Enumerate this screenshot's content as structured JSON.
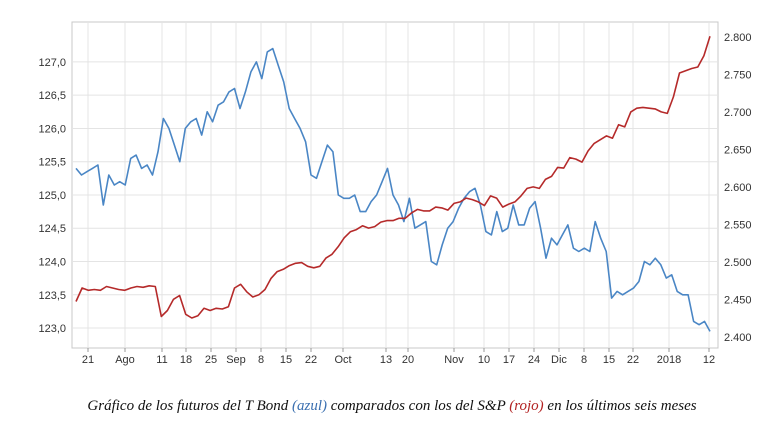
{
  "chart_data": {
    "type": "line",
    "grid": true,
    "legend": "none",
    "x_ticks": [
      "21",
      "Ago",
      "11",
      "18",
      "25",
      "Sep",
      "8",
      "15",
      "22",
      "Oct",
      "13",
      "20",
      "Nov",
      "10",
      "17",
      "24",
      "Dic",
      "8",
      "15",
      "22",
      "2018",
      "12"
    ],
    "y_left": {
      "ticks": [
        "123,0",
        "123,5",
        "124,0",
        "124,5",
        "125,0",
        "125,5",
        "126,0",
        "126,5",
        "127,0"
      ],
      "ylim": [
        122.7,
        127.6
      ]
    },
    "y_right": {
      "ticks": [
        "2.400",
        "2.450",
        "2.500",
        "2.550",
        "2.600",
        "2.650",
        "2.700",
        "2.750",
        "2.800"
      ],
      "ylim": [
        2.385,
        2.82
      ]
    },
    "series": [
      {
        "name": "T Bond",
        "axis": "left",
        "color": "#4a86c5",
        "values": [
          125.4,
          125.3,
          125.35,
          125.4,
          125.45,
          124.85,
          125.3,
          125.15,
          125.2,
          125.15,
          125.55,
          125.6,
          125.4,
          125.45,
          125.3,
          125.65,
          126.15,
          126.0,
          125.75,
          125.5,
          126.0,
          126.1,
          126.15,
          125.9,
          126.25,
          126.1,
          126.35,
          126.4,
          126.55,
          126.6,
          126.3,
          126.55,
          126.85,
          127.0,
          126.75,
          127.15,
          127.2,
          126.95,
          126.7,
          126.3,
          126.15,
          126.0,
          125.8,
          125.3,
          125.25,
          125.5,
          125.75,
          125.65,
          125.0,
          124.95,
          124.95,
          125.0,
          124.75,
          124.75,
          124.9,
          125.0,
          125.2,
          125.4,
          125.0,
          124.85,
          124.6,
          124.95,
          124.5,
          124.55,
          124.6,
          124.0,
          123.95,
          124.25,
          124.5,
          124.6,
          124.8,
          124.95,
          125.05,
          125.1,
          124.85,
          124.45,
          124.4,
          124.75,
          124.45,
          124.5,
          124.85,
          124.55,
          124.55,
          124.8,
          124.9,
          124.5,
          124.05,
          124.35,
          124.25,
          124.4,
          124.55,
          124.2,
          124.15,
          124.2,
          124.15,
          124.6,
          124.35,
          124.15,
          123.45,
          123.55,
          123.5,
          123.55,
          123.6,
          123.7,
          124.0,
          123.95,
          124.05,
          123.95,
          123.75,
          123.8,
          123.55,
          123.5,
          123.5,
          123.1,
          123.05,
          123.1,
          122.95
        ]
      },
      {
        "name": "S&P",
        "axis": "right",
        "color": "#b52a2a",
        "values": [
          2.447,
          2.465,
          2.462,
          2.463,
          2.462,
          2.467,
          2.465,
          2.463,
          2.462,
          2.465,
          2.467,
          2.466,
          2.468,
          2.467,
          2.427,
          2.435,
          2.45,
          2.455,
          2.43,
          2.425,
          2.428,
          2.438,
          2.435,
          2.438,
          2.437,
          2.44,
          2.465,
          2.47,
          2.46,
          2.453,
          2.456,
          2.463,
          2.478,
          2.487,
          2.49,
          2.495,
          2.498,
          2.499,
          2.494,
          2.492,
          2.494,
          2.505,
          2.51,
          2.52,
          2.532,
          2.54,
          2.543,
          2.548,
          2.545,
          2.547,
          2.553,
          2.555,
          2.555,
          2.558,
          2.558,
          2.565,
          2.57,
          2.568,
          2.568,
          2.573,
          2.572,
          2.569,
          2.578,
          2.58,
          2.585,
          2.583,
          2.58,
          2.575,
          2.588,
          2.585,
          2.573,
          2.577,
          2.58,
          2.588,
          2.598,
          2.6,
          2.598,
          2.61,
          2.614,
          2.626,
          2.625,
          2.639,
          2.637,
          2.633,
          2.648,
          2.658,
          2.663,
          2.668,
          2.665,
          2.683,
          2.68,
          2.7,
          2.705,
          2.706,
          2.705,
          2.704,
          2.7,
          2.698,
          2.72,
          2.752,
          2.755,
          2.758,
          2.76,
          2.775,
          2.801
        ]
      }
    ]
  },
  "caption": {
    "part1": "Gráfico de los futuros del T Bond ",
    "blue_word": "(azul)",
    "part2": " comparados con los del S&P ",
    "red_word": "(rojo)",
    "part3": " en los últimos seis meses"
  }
}
